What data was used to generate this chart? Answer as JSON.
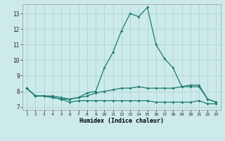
{
  "xlabel": "Humidex (Indice chaleur)",
  "x": [
    1,
    2,
    3,
    4,
    5,
    6,
    7,
    8,
    9,
    10,
    11,
    12,
    13,
    14,
    15,
    16,
    17,
    18,
    19,
    20,
    21,
    22,
    23
  ],
  "line1": [
    8.2,
    7.7,
    7.7,
    7.6,
    7.5,
    7.3,
    7.4,
    7.4,
    7.4,
    7.4,
    7.4,
    7.4,
    7.4,
    7.4,
    7.4,
    7.3,
    7.3,
    7.3,
    7.3,
    7.3,
    7.4,
    7.2,
    7.2
  ],
  "line2": [
    8.2,
    7.7,
    7.7,
    7.6,
    7.5,
    7.5,
    7.6,
    7.7,
    7.9,
    8.0,
    8.1,
    8.2,
    8.2,
    8.3,
    8.2,
    8.2,
    8.2,
    8.2,
    8.3,
    8.3,
    8.3,
    7.5,
    7.3
  ],
  "line3": [
    8.2,
    7.7,
    7.7,
    7.7,
    7.6,
    7.5,
    7.6,
    7.9,
    8.0,
    9.5,
    10.5,
    11.9,
    13.0,
    12.8,
    13.4,
    11.0,
    10.1,
    9.5,
    8.3,
    8.4,
    8.4,
    7.5,
    7.3
  ],
  "bg_color": "#cdeaea",
  "grid_color": "#afd4d4",
  "line_color": "#1a7a6e",
  "ylim": [
    6.8,
    13.6
  ],
  "yticks": [
    7,
    8,
    9,
    10,
    11,
    12,
    13
  ],
  "xlim": [
    0.5,
    23.5
  ]
}
